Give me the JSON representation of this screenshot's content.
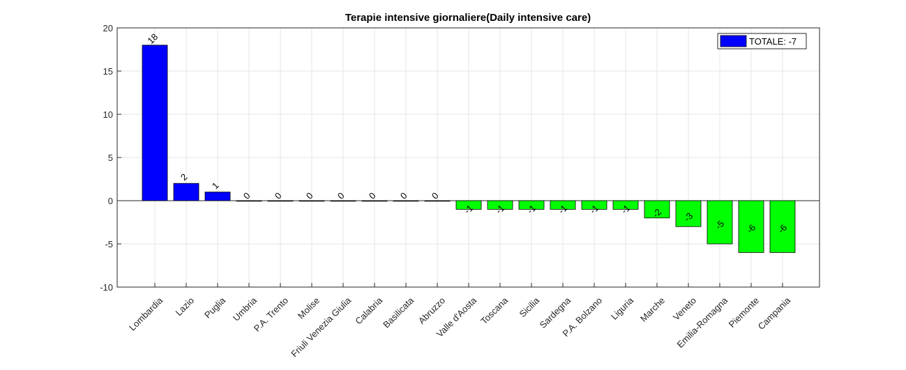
{
  "chart_data": {
    "type": "bar",
    "title": "Terapie intensive giornaliere(Daily intensive care)",
    "xlabel": "",
    "ylabel": "",
    "ylim": [
      -10,
      20
    ],
    "yticks": [
      -10,
      -5,
      0,
      5,
      10,
      15,
      20
    ],
    "grid": true,
    "legend": {
      "position": "top-right",
      "label": "TOTALE: -7",
      "color": "#0000ff"
    },
    "colors": {
      "positive": "#0000ff",
      "negative": "#00ff00"
    },
    "categories": [
      "Lombardia",
      "Lazio",
      "Puglia",
      "Umbria",
      "P.A. Trento",
      "Molise",
      "Friuli Venezia Giulia",
      "Calabria",
      "Basilicata",
      "Abruzzo",
      "Valle d'Aosta",
      "Toscana",
      "Sicilia",
      "Sardegna",
      "P.A. Bolzano",
      "Liguria",
      "Marche",
      "Veneto",
      "Emilia-Romagna",
      "Piemonte",
      "Campania"
    ],
    "values": [
      18,
      2,
      1,
      0,
      0,
      0,
      0,
      0,
      0,
      0,
      -1,
      -1,
      -1,
      -1,
      -1,
      -1,
      -2,
      -3,
      -5,
      -6,
      -6
    ]
  }
}
